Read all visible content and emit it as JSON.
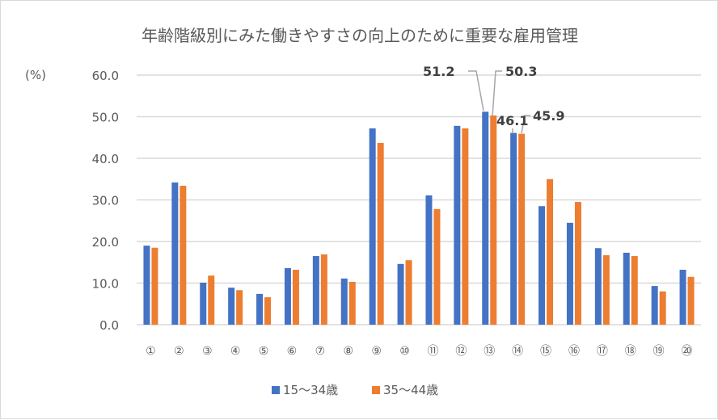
{
  "chart_data": {
    "type": "bar",
    "title": "年齢階級別にみた働きやすさの向上のために重要な雇用管理",
    "ylabel": "(%)",
    "xlabel": "",
    "ylim": [
      0,
      60
    ],
    "yticks": [
      "0.0",
      "10.0",
      "20.0",
      "30.0",
      "40.0",
      "50.0",
      "60.0"
    ],
    "grid": true,
    "legend_position": "bottom",
    "categories": [
      "①",
      "②",
      "③",
      "④",
      "⑤",
      "⑥",
      "⑦",
      "⑧",
      "⑨",
      "⑩",
      "⑪",
      "⑫",
      "⑬",
      "⑭",
      "⑮",
      "⑯",
      "⑰",
      "⑱",
      "⑲",
      "⑳"
    ],
    "series": [
      {
        "name": "15～34歳",
        "color": "#4472c4",
        "values": [
          19.0,
          34.2,
          10.1,
          8.9,
          7.4,
          13.6,
          16.5,
          11.1,
          47.2,
          14.6,
          31.1,
          47.8,
          51.2,
          46.1,
          28.5,
          24.5,
          18.4,
          17.3,
          9.3,
          13.2
        ]
      },
      {
        "name": "35～44歳",
        "color": "#ed7d31",
        "values": [
          18.5,
          33.4,
          11.8,
          8.3,
          6.6,
          13.2,
          16.9,
          10.3,
          43.7,
          15.5,
          27.8,
          47.2,
          50.3,
          45.9,
          35.0,
          29.5,
          16.7,
          16.5,
          8.0,
          11.5
        ]
      }
    ],
    "data_labels": [
      {
        "text": "51.2"
      },
      {
        "text": "50.3"
      },
      {
        "text": "46.1"
      },
      {
        "text": "45.9"
      }
    ]
  }
}
